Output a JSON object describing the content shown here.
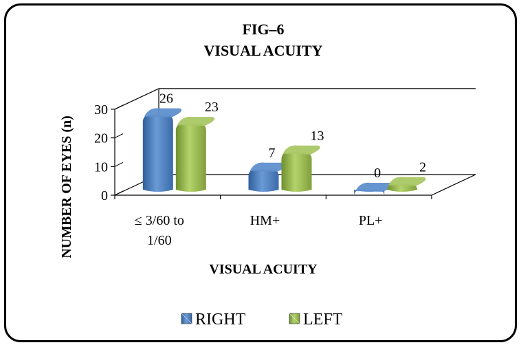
{
  "chart_data": {
    "type": "bar",
    "title": "FIG–6",
    "subtitle": "VISUAL ACUITY",
    "xlabel": "VISUAL ACUITY",
    "ylabel": "NUMBER OF EYES (n)",
    "categories": [
      [
        "≤ 3/60 to",
        "1/60"
      ],
      [
        "HM+"
      ],
      [
        "PL+"
      ]
    ],
    "series": [
      {
        "name": "RIGHT",
        "values": [
          26,
          7,
          0
        ],
        "color": "#4F81BD"
      },
      {
        "name": "LEFT",
        "values": [
          23,
          13,
          2
        ],
        "color": "#9BBB59"
      }
    ],
    "yticks": [
      0,
      10,
      20,
      30
    ],
    "ylim": [
      0,
      30
    ],
    "grid": false,
    "legend": "bottom",
    "style": "3d-cylinder"
  }
}
